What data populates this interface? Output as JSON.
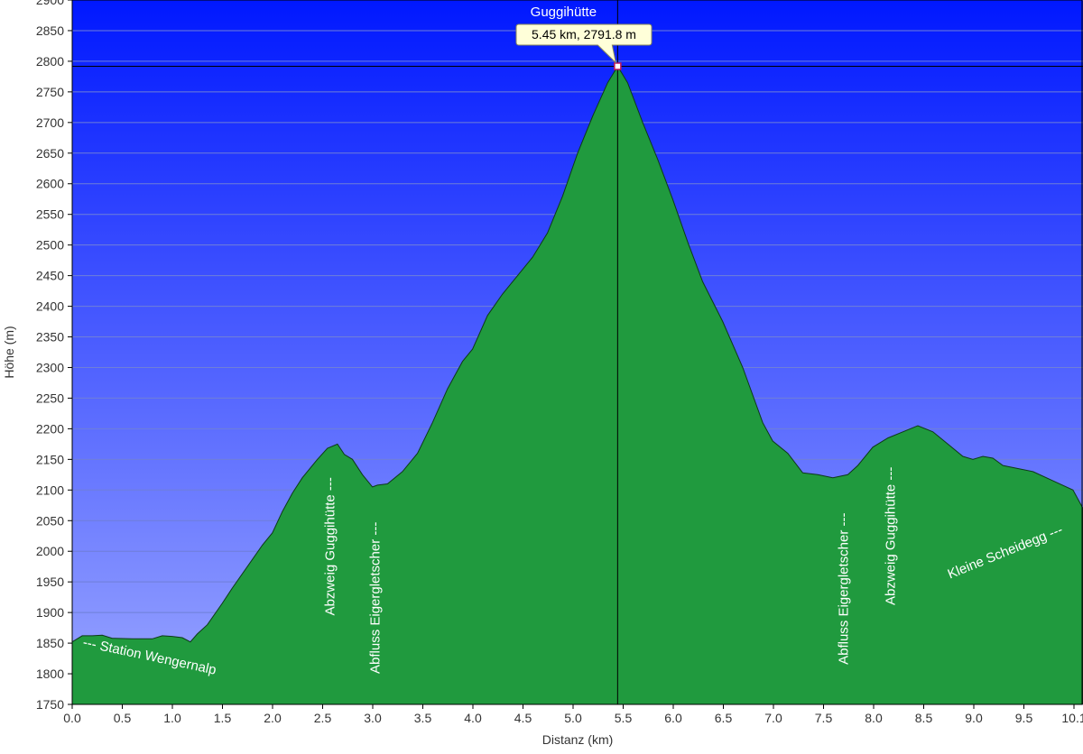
{
  "chart_data": {
    "type": "area",
    "xlabel": "Distanz   (km)",
    "ylabel": "Höhe (m)",
    "xlim": [
      0,
      10.1
    ],
    "ylim": [
      1750,
      2900
    ],
    "x_ticks": [
      "0.0",
      "0.5",
      "1.0",
      "1.5",
      "2.0",
      "2.5",
      "3.0",
      "3.5",
      "4.0",
      "4.5",
      "5.0",
      "5.5",
      "6.0",
      "6.5",
      "7.0",
      "7.5",
      "8.0",
      "8.5",
      "9.0",
      "9.5",
      "10.1"
    ],
    "y_ticks": [
      1750,
      1800,
      1850,
      1900,
      1950,
      2000,
      2050,
      2100,
      2150,
      2200,
      2250,
      2300,
      2350,
      2400,
      2450,
      2500,
      2550,
      2600,
      2650,
      2700,
      2750,
      2800,
      2850,
      2900
    ],
    "grid": true,
    "colors": {
      "fill": "#1f9c3c",
      "sky_top": "#0018ff",
      "sky_bottom": "#9aa6ff",
      "outline": "#0d3a18"
    },
    "series": [
      {
        "x": [
          0.0,
          0.1,
          0.2,
          0.3,
          0.4,
          0.6,
          0.8,
          0.9,
          1.0,
          1.1,
          1.18,
          1.25,
          1.35,
          1.5,
          1.6,
          1.75,
          1.9,
          2.0,
          2.1,
          2.2,
          2.3,
          2.45,
          2.55,
          2.65,
          2.72,
          2.8,
          2.9,
          3.0,
          3.05,
          3.15,
          3.3,
          3.45,
          3.6,
          3.75,
          3.9,
          4.0,
          4.15,
          4.3,
          4.45,
          4.6,
          4.75,
          4.9,
          5.05,
          5.2,
          5.35,
          5.45,
          5.55,
          5.7,
          5.85,
          6.0,
          6.15,
          6.3,
          6.5,
          6.7,
          6.9,
          7.0,
          7.15,
          7.3,
          7.45,
          7.6,
          7.75,
          7.85,
          8.0,
          8.15,
          8.3,
          8.45,
          8.6,
          8.75,
          8.9,
          9.0,
          9.1,
          9.2,
          9.3,
          9.45,
          9.6,
          9.8,
          10.0,
          10.1
        ],
        "y": [
          1852,
          1862,
          1862,
          1863,
          1858,
          1857,
          1857,
          1862,
          1861,
          1859,
          1852,
          1865,
          1880,
          1915,
          1940,
          1975,
          2010,
          2030,
          2065,
          2095,
          2120,
          2150,
          2168,
          2175,
          2158,
          2150,
          2125,
          2105,
          2108,
          2110,
          2130,
          2160,
          2210,
          2265,
          2310,
          2330,
          2385,
          2420,
          2450,
          2480,
          2520,
          2580,
          2650,
          2710,
          2765,
          2791.8,
          2765,
          2700,
          2640,
          2575,
          2505,
          2440,
          2375,
          2300,
          2210,
          2180,
          2160,
          2128,
          2125,
          2120,
          2125,
          2140,
          2170,
          2185,
          2195,
          2205,
          2195,
          2175,
          2155,
          2150,
          2155,
          2152,
          2140,
          2135,
          2130,
          2115,
          2100,
          2070
        ]
      }
    ],
    "marker": {
      "x": 5.45,
      "y": 2791.8,
      "title": "Guggihütte",
      "tooltip": "5.45 km, 2791.8 m"
    },
    "annotations": [
      {
        "text": "--- Station Wengernalp",
        "x": 0.1,
        "y": 1845,
        "rotate": 12
      },
      {
        "text": "Abzweig Guggihütte ---",
        "x": 2.62,
        "y": 1895,
        "rotate": -90
      },
      {
        "text": "Abfluss Eigergletscher ---",
        "x": 3.07,
        "y": 1800,
        "rotate": -90
      },
      {
        "text": "Abfluss Eigergletscher ---",
        "x": 7.75,
        "y": 1815,
        "rotate": -90
      },
      {
        "text": "Abzweig Guggihütte ---",
        "x": 8.22,
        "y": 1912,
        "rotate": -90
      },
      {
        "text": "Kleine Scheidegg ---",
        "x": 8.77,
        "y": 1955,
        "rotate": -22
      }
    ]
  }
}
